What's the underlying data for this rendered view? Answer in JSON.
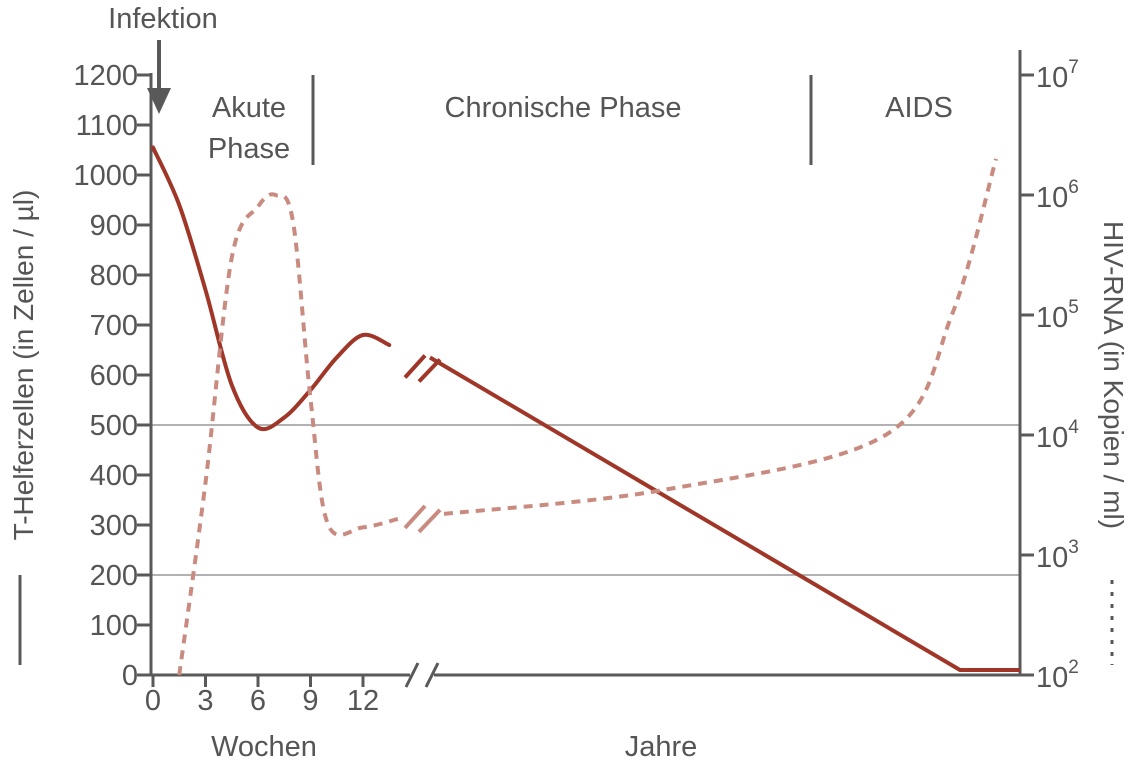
{
  "chart_data": {
    "type": "line",
    "annotation_infection": "Infektion",
    "phases": [
      "Akute Phase",
      "Chronische Phase",
      "AIDS"
    ],
    "phase_lines": [
      [
        "Akute",
        "Phase"
      ],
      [
        "Chronische Phase"
      ],
      [
        "AIDS"
      ]
    ],
    "y_left": {
      "label": "T-Helferzellen (in Zellen / µl)",
      "ticks": [
        0,
        100,
        200,
        300,
        400,
        500,
        600,
        700,
        800,
        900,
        1000,
        1100,
        1200
      ],
      "range": [
        0,
        1200
      ]
    },
    "y_right": {
      "label": "HIV-RNA (in Kopien / ml)",
      "scale": "log",
      "range": [
        100,
        10000000
      ],
      "ticks": [
        {
          "base": "10",
          "exp": "2",
          "value": 100
        },
        {
          "base": "10",
          "exp": "3",
          "value": 1000
        },
        {
          "base": "10",
          "exp": "4",
          "value": 10000
        },
        {
          "base": "10",
          "exp": "5",
          "value": 100000
        },
        {
          "base": "10",
          "exp": "6",
          "value": 1000000
        },
        {
          "base": "10",
          "exp": "7",
          "value": 10000000
        }
      ]
    },
    "x": {
      "weeks_ticks": [
        0,
        3,
        6,
        9,
        12
      ],
      "weeks_label": "Wochen",
      "years_label": "Jahre",
      "axis_break": true
    },
    "reference_lines": [
      500,
      200
    ],
    "series": [
      {
        "style": "solid",
        "axis": "left",
        "color": "#a03628",
        "points": [
          {
            "x": 0,
            "y": 1055
          },
          {
            "x": 1.5,
            "y": 940
          },
          {
            "x": 3,
            "y": 770
          },
          {
            "x": 4.5,
            "y": 580
          },
          {
            "x": 6,
            "y": 495
          },
          {
            "x": 7.5,
            "y": 515
          },
          {
            "x": 9,
            "y": 570
          },
          {
            "x": 10.5,
            "y": 635
          },
          {
            "x": 12,
            "y": 680
          },
          {
            "x": 13.5,
            "y": 660
          }
        ],
        "chronic_trend": {
          "start": 635,
          "end": 10
        }
      },
      {
        "style": "dashed",
        "axis": "right",
        "color": "#c98b80",
        "points": [
          {
            "x": 1.5,
            "y": 100
          },
          {
            "x": 3,
            "y": 4000
          },
          {
            "x": 4.5,
            "y": 300000
          },
          {
            "x": 6,
            "y": 800000
          },
          {
            "x": 7,
            "y": 1000000
          },
          {
            "x": 8,
            "y": 600000
          },
          {
            "x": 9,
            "y": 20000
          },
          {
            "x": 10,
            "y": 1800
          },
          {
            "x": 12,
            "y": 1700
          },
          {
            "x": 14,
            "y": 2000
          }
        ],
        "chronic_trend": [
          {
            "t": 0,
            "y": 2200
          },
          {
            "t": 0.4,
            "y": 3500
          },
          {
            "t": 0.8,
            "y": 10000
          },
          {
            "t": 1,
            "y": 2000000
          }
        ]
      }
    ],
    "right_legend_style": "dashed",
    "left_legend_style": "solid",
    "colors": {
      "axis": "#595959",
      "text": "#555555",
      "solid": "#a03628",
      "dashed": "#c98b80",
      "reference": "#999999"
    }
  }
}
